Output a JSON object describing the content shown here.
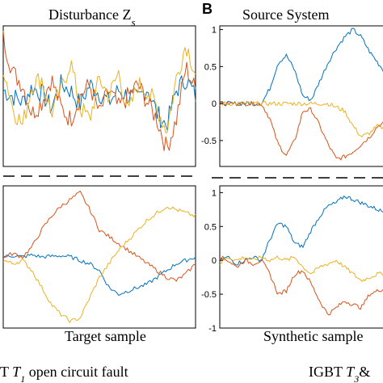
{
  "panel_letter": "B",
  "titles": {
    "disturbance": "Disturbance Z",
    "disturbance_sub": "s",
    "source": "Source System",
    "target": "Target sample",
    "synthetic": "Synthetic sample"
  },
  "captions": {
    "left_prefix": "T ",
    "left_var": "T",
    "left_sub": "1",
    "left_suffix": " open circuit fault",
    "right_prefix": "IGBT ",
    "right_var": "T",
    "right_sub": "3",
    "right_suffix": "&"
  },
  "colors": {
    "blue": "#0072BD",
    "orange": "#D95319",
    "yellow": "#EDB120",
    "dash": "#000000"
  },
  "chart_data": [
    {
      "name": "disturbance",
      "type": "line",
      "title": "Disturbance Zs",
      "ylim": [
        -1.2,
        1.2
      ],
      "grid": false,
      "x": [
        0,
        0.05,
        0.1,
        0.15,
        0.2,
        0.25,
        0.3,
        0.35,
        0.4,
        0.45,
        0.5,
        0.55,
        0.6,
        0.65,
        0.7,
        0.75,
        0.8,
        0.85,
        0.9,
        0.95,
        1.0
      ],
      "series": [
        {
          "color": "blue",
          "values": [
            0.1,
            0.0,
            -0.1,
            0.15,
            0.05,
            -0.2,
            0.2,
            0.1,
            -0.15,
            0.2,
            0.05,
            -0.1,
            0.1,
            0.0,
            -0.05,
            0.15,
            -0.3,
            -0.5,
            0.1,
            0.3,
            0.0
          ]
        },
        {
          "color": "orange",
          "values": [
            1.0,
            0.4,
            0.2,
            -0.3,
            -0.1,
            0.3,
            -0.2,
            -0.4,
            0.0,
            0.2,
            -0.3,
            0.1,
            -0.2,
            0.0,
            0.2,
            -0.1,
            -0.4,
            -0.9,
            -0.4,
            0.5,
            0.1
          ]
        },
        {
          "color": "yellow",
          "values": [
            0.5,
            -0.2,
            -0.5,
            0.2,
            0.3,
            -0.3,
            0.1,
            0.6,
            -0.2,
            -0.4,
            0.3,
            0.0,
            0.4,
            -0.3,
            0.2,
            0.1,
            -0.2,
            -0.6,
            0.3,
            0.9,
            0.4
          ]
        }
      ]
    },
    {
      "name": "source-system",
      "type": "line",
      "title": "Source System",
      "ylim": [
        -0.85,
        1.05
      ],
      "yticks": [
        "1",
        "0.5",
        "0",
        "-0.5"
      ],
      "ytick_values": [
        1,
        0.5,
        0,
        -0.5
      ],
      "grid": false,
      "x": [
        0,
        0.05,
        0.1,
        0.15,
        0.2,
        0.25,
        0.3,
        0.35,
        0.4,
        0.45,
        0.5,
        0.55,
        0.6,
        0.65,
        0.7,
        0.75,
        0.8,
        0.85,
        0.9,
        0.95,
        1.0
      ],
      "series": [
        {
          "color": "blue",
          "values": [
            0.0,
            0.0,
            0.0,
            0.0,
            0.0,
            0.0,
            0.2,
            0.55,
            0.65,
            0.45,
            0.1,
            0.05,
            0.3,
            0.55,
            0.75,
            0.9,
            1.0,
            0.9,
            0.7,
            0.55,
            0.4
          ]
        },
        {
          "color": "orange",
          "values": [
            0.0,
            0.0,
            0.0,
            0.0,
            0.0,
            0.0,
            -0.2,
            -0.55,
            -0.7,
            -0.5,
            -0.1,
            -0.08,
            -0.3,
            -0.55,
            -0.75,
            -0.72,
            -0.65,
            -0.55,
            -0.45,
            -0.3,
            -0.25
          ]
        },
        {
          "color": "yellow",
          "values": [
            0.0,
            0.0,
            0.0,
            0.0,
            0.0,
            0.0,
            0.0,
            0.0,
            0.0,
            0.0,
            0.0,
            0.0,
            0.0,
            0.0,
            -0.05,
            -0.1,
            -0.3,
            -0.45,
            -0.4,
            -0.3,
            -0.35
          ]
        }
      ]
    },
    {
      "name": "target-sample",
      "type": "line",
      "title": "Target sample",
      "ylim": [
        -1.05,
        1.05
      ],
      "grid": false,
      "x": [
        0,
        0.05,
        0.1,
        0.15,
        0.2,
        0.25,
        0.3,
        0.35,
        0.4,
        0.45,
        0.5,
        0.55,
        0.6,
        0.65,
        0.7,
        0.75,
        0.8,
        0.85,
        0.9,
        0.95,
        1.0
      ],
      "series": [
        {
          "color": "blue",
          "values": [
            0.0,
            0.02,
            0.0,
            0.03,
            0.0,
            0.01,
            0.02,
            0.0,
            -0.05,
            -0.1,
            -0.2,
            -0.45,
            -0.55,
            -0.5,
            -0.45,
            -0.4,
            -0.3,
            -0.2,
            -0.1,
            -0.05,
            0.0
          ]
        },
        {
          "color": "orange",
          "values": [
            0.0,
            0.05,
            0.0,
            0.15,
            0.4,
            0.6,
            0.75,
            0.85,
            0.95,
            0.7,
            0.4,
            0.3,
            0.2,
            0.1,
            0.0,
            -0.1,
            -0.2,
            -0.3,
            -0.35,
            -0.25,
            -0.1
          ]
        },
        {
          "color": "yellow",
          "values": [
            -0.05,
            -0.1,
            -0.05,
            -0.2,
            -0.45,
            -0.7,
            -0.85,
            -0.95,
            -0.9,
            -0.6,
            -0.3,
            -0.1,
            0.1,
            0.25,
            0.4,
            0.55,
            0.65,
            0.75,
            0.7,
            0.65,
            0.6
          ]
        }
      ]
    },
    {
      "name": "synthetic-sample",
      "type": "line",
      "title": "Synthetic sample",
      "ylim": [
        -1.0,
        1.1
      ],
      "yticks": [
        "1",
        "0.5",
        "0",
        "-0.5",
        "-1"
      ],
      "ytick_values": [
        1,
        0.5,
        0,
        -0.5,
        -1
      ],
      "grid": false,
      "x": [
        0,
        0.05,
        0.1,
        0.15,
        0.2,
        0.25,
        0.3,
        0.35,
        0.4,
        0.45,
        0.5,
        0.55,
        0.6,
        0.65,
        0.7,
        0.75,
        0.8,
        0.85,
        0.9,
        0.95,
        1.0
      ],
      "series": [
        {
          "color": "blue",
          "values": [
            0.0,
            0.05,
            -0.05,
            0.0,
            0.05,
            0.0,
            0.3,
            0.55,
            0.5,
            0.25,
            0.2,
            0.45,
            0.65,
            0.8,
            0.85,
            0.95,
            0.9,
            0.85,
            0.8,
            0.75,
            0.7
          ]
        },
        {
          "color": "orange",
          "values": [
            0.05,
            0.0,
            -0.1,
            0.0,
            -0.05,
            0.0,
            -0.2,
            -0.5,
            -0.45,
            -0.2,
            -0.15,
            -0.35,
            -0.6,
            -0.8,
            -0.7,
            -0.6,
            -0.65,
            -0.7,
            -0.5,
            -0.45,
            -0.4
          ]
        },
        {
          "color": "yellow",
          "values": [
            -0.05,
            0.05,
            0.0,
            0.05,
            0.0,
            0.05,
            0.0,
            0.05,
            0.0,
            0.05,
            -0.1,
            -0.2,
            -0.1,
            -0.05,
            0.0,
            -0.1,
            -0.2,
            -0.3,
            -0.25,
            -0.2,
            -0.2
          ]
        }
      ]
    }
  ]
}
